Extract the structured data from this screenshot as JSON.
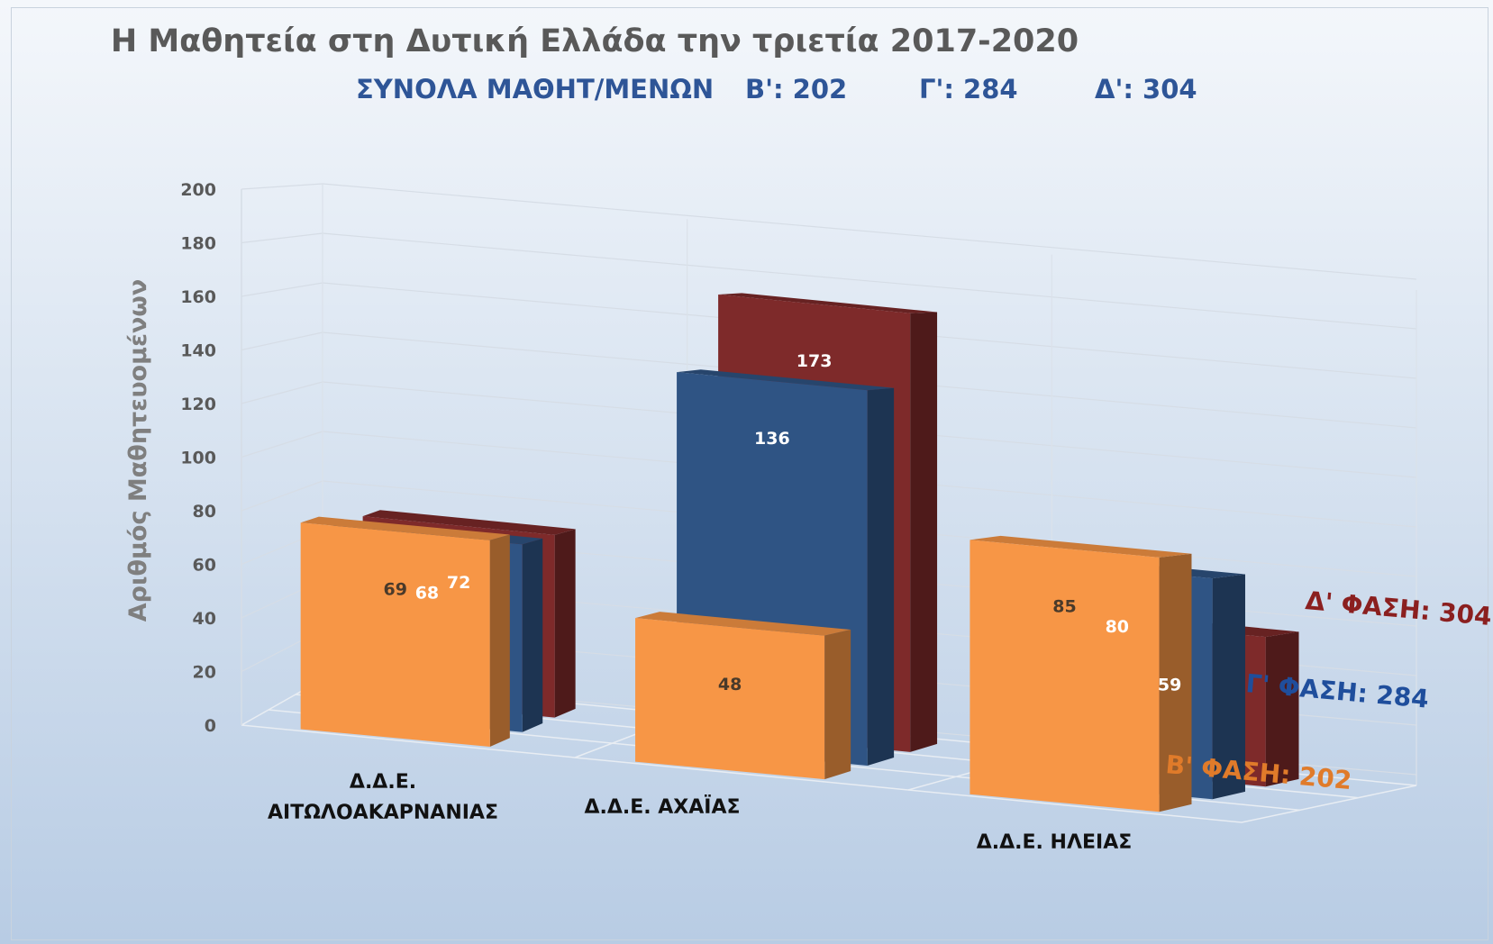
{
  "colors": {
    "series_b": "#f79646",
    "series_g": "#2f5484",
    "series_d": "#7e2a2a",
    "label_b": "#e07b2a",
    "label_g": "#1f4e9c",
    "label_d": "#8b1f1f"
  },
  "chart_data": {
    "type": "bar",
    "title": "Η Μαθητεία στη Δυτική Ελλάδα την τριετία 2017-2020",
    "subtitle": {
      "prefix": "ΣΥΝΟΛΑ ΜΑΘΗΤ/ΜΕΝΩΝ",
      "b": "Β': 202",
      "g": "Γ': 284",
      "d": "Δ': 304"
    },
    "ylabel": "Αριθμός Μαθητευομένων",
    "ylim": [
      0,
      200
    ],
    "yticks": [
      "0",
      "20",
      "40",
      "60",
      "80",
      "100",
      "120",
      "140",
      "160",
      "180",
      "200"
    ],
    "grid": true,
    "categories": [
      "Δ.Δ.Ε. ΑΙΤΩΛΟΑΚΑΡΝΑΝΙΑΣ",
      "Δ.Δ.Ε. ΑΧΑΪΑΣ",
      "Δ.Δ.Ε. ΗΛΕΙΑΣ"
    ],
    "category_lines": [
      [
        "Δ.Δ.Ε.",
        "ΑΙΤΩΛΟΑΚΑΡΝΑΝΙΑΣ"
      ],
      [
        "Δ.Δ.Ε. ΑΧΑΪΑΣ"
      ],
      [
        "Δ.Δ.Ε. ΗΛΕΙΑΣ"
      ]
    ],
    "series": [
      {
        "name": "Β' ΦΑΣΗ: 202",
        "values": [
          69,
          48,
          85
        ]
      },
      {
        "name": "Γ' ΦΑΣΗ: 284",
        "values": [
          68,
          136,
          80
        ]
      },
      {
        "name": "Δ' ΦΑΣΗ: 304",
        "values": [
          72,
          173,
          59
        ]
      }
    ]
  }
}
